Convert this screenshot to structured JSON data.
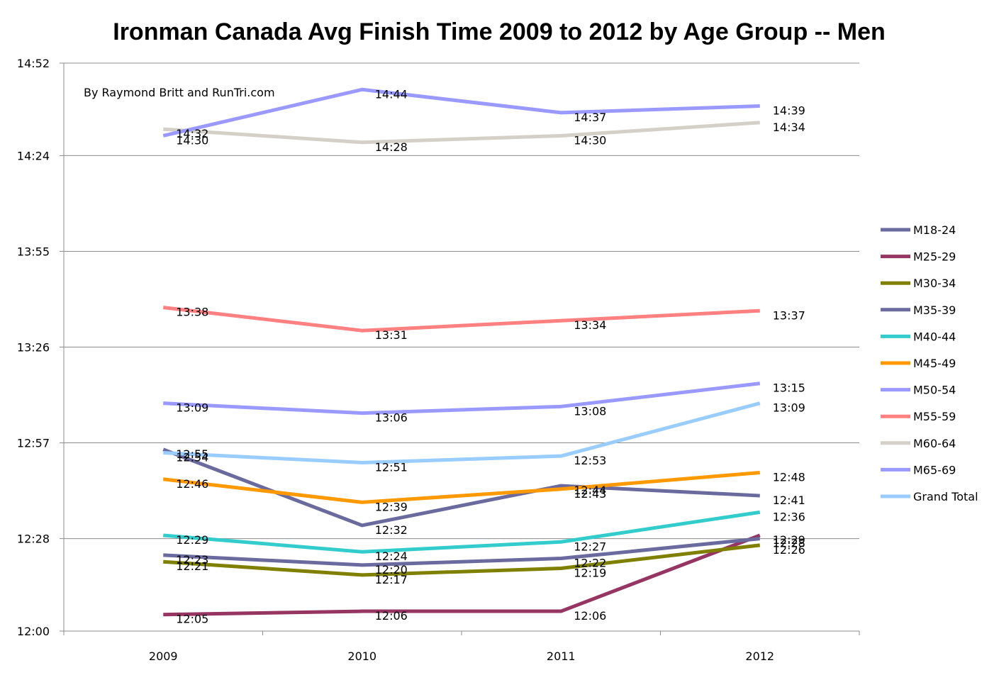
{
  "chart_data": {
    "type": "line",
    "title": "Ironman Canada Avg Finish Time 2009 to 2012 by Age Group -- Men",
    "credit": "By Raymond Britt and RunTri.com",
    "xlabel": "",
    "ylabel": "",
    "categories": [
      "2009",
      "2010",
      "2011",
      "2012"
    ],
    "y_ticks": [
      "12:00",
      "12:28",
      "12:57",
      "13:26",
      "13:55",
      "14:24",
      "14:52"
    ],
    "ylim": [
      "12:00",
      "14:52"
    ],
    "grid": "horizontal",
    "legend_position": "right",
    "series": [
      {
        "name": "M18-24",
        "color": "#6a6a9e",
        "values": [
          "12:55",
          "12:32",
          "12:44",
          "12:41"
        ]
      },
      {
        "name": "M25-29",
        "color": "#963462",
        "values": [
          "12:05",
          "12:06",
          "12:06",
          "12:29"
        ]
      },
      {
        "name": "M30-34",
        "color": "#7f7f00",
        "values": [
          "12:21",
          "12:17",
          "12:19",
          "12:26"
        ]
      },
      {
        "name": "M35-39",
        "color": "#6a6a9e",
        "values": [
          "12:23",
          "12:20",
          "12:22",
          "12:28"
        ]
      },
      {
        "name": "M40-44",
        "color": "#33cccc",
        "values": [
          "12:29",
          "12:24",
          "12:27",
          "12:36"
        ]
      },
      {
        "name": "M45-49",
        "color": "#ff9900",
        "values": [
          "12:46",
          "12:39",
          "12:43",
          "12:48"
        ]
      },
      {
        "name": "M50-54",
        "color": "#9999ff",
        "values": [
          "13:09",
          "13:06",
          "13:08",
          "13:15"
        ]
      },
      {
        "name": "M55-59",
        "color": "#ff8080",
        "values": [
          "13:38",
          "13:31",
          "13:34",
          "13:37"
        ]
      },
      {
        "name": "M60-64",
        "color": "#d4d0c8",
        "values": [
          "14:32",
          "14:28",
          "14:30",
          "14:34"
        ]
      },
      {
        "name": "M65-69",
        "color": "#9999ff",
        "values": [
          "14:30",
          "14:44",
          "14:37",
          "14:39"
        ]
      },
      {
        "name": "Grand Total",
        "color": "#99ccff",
        "values": [
          "12:54",
          "12:51",
          "12:53",
          "13:09"
        ]
      }
    ]
  }
}
